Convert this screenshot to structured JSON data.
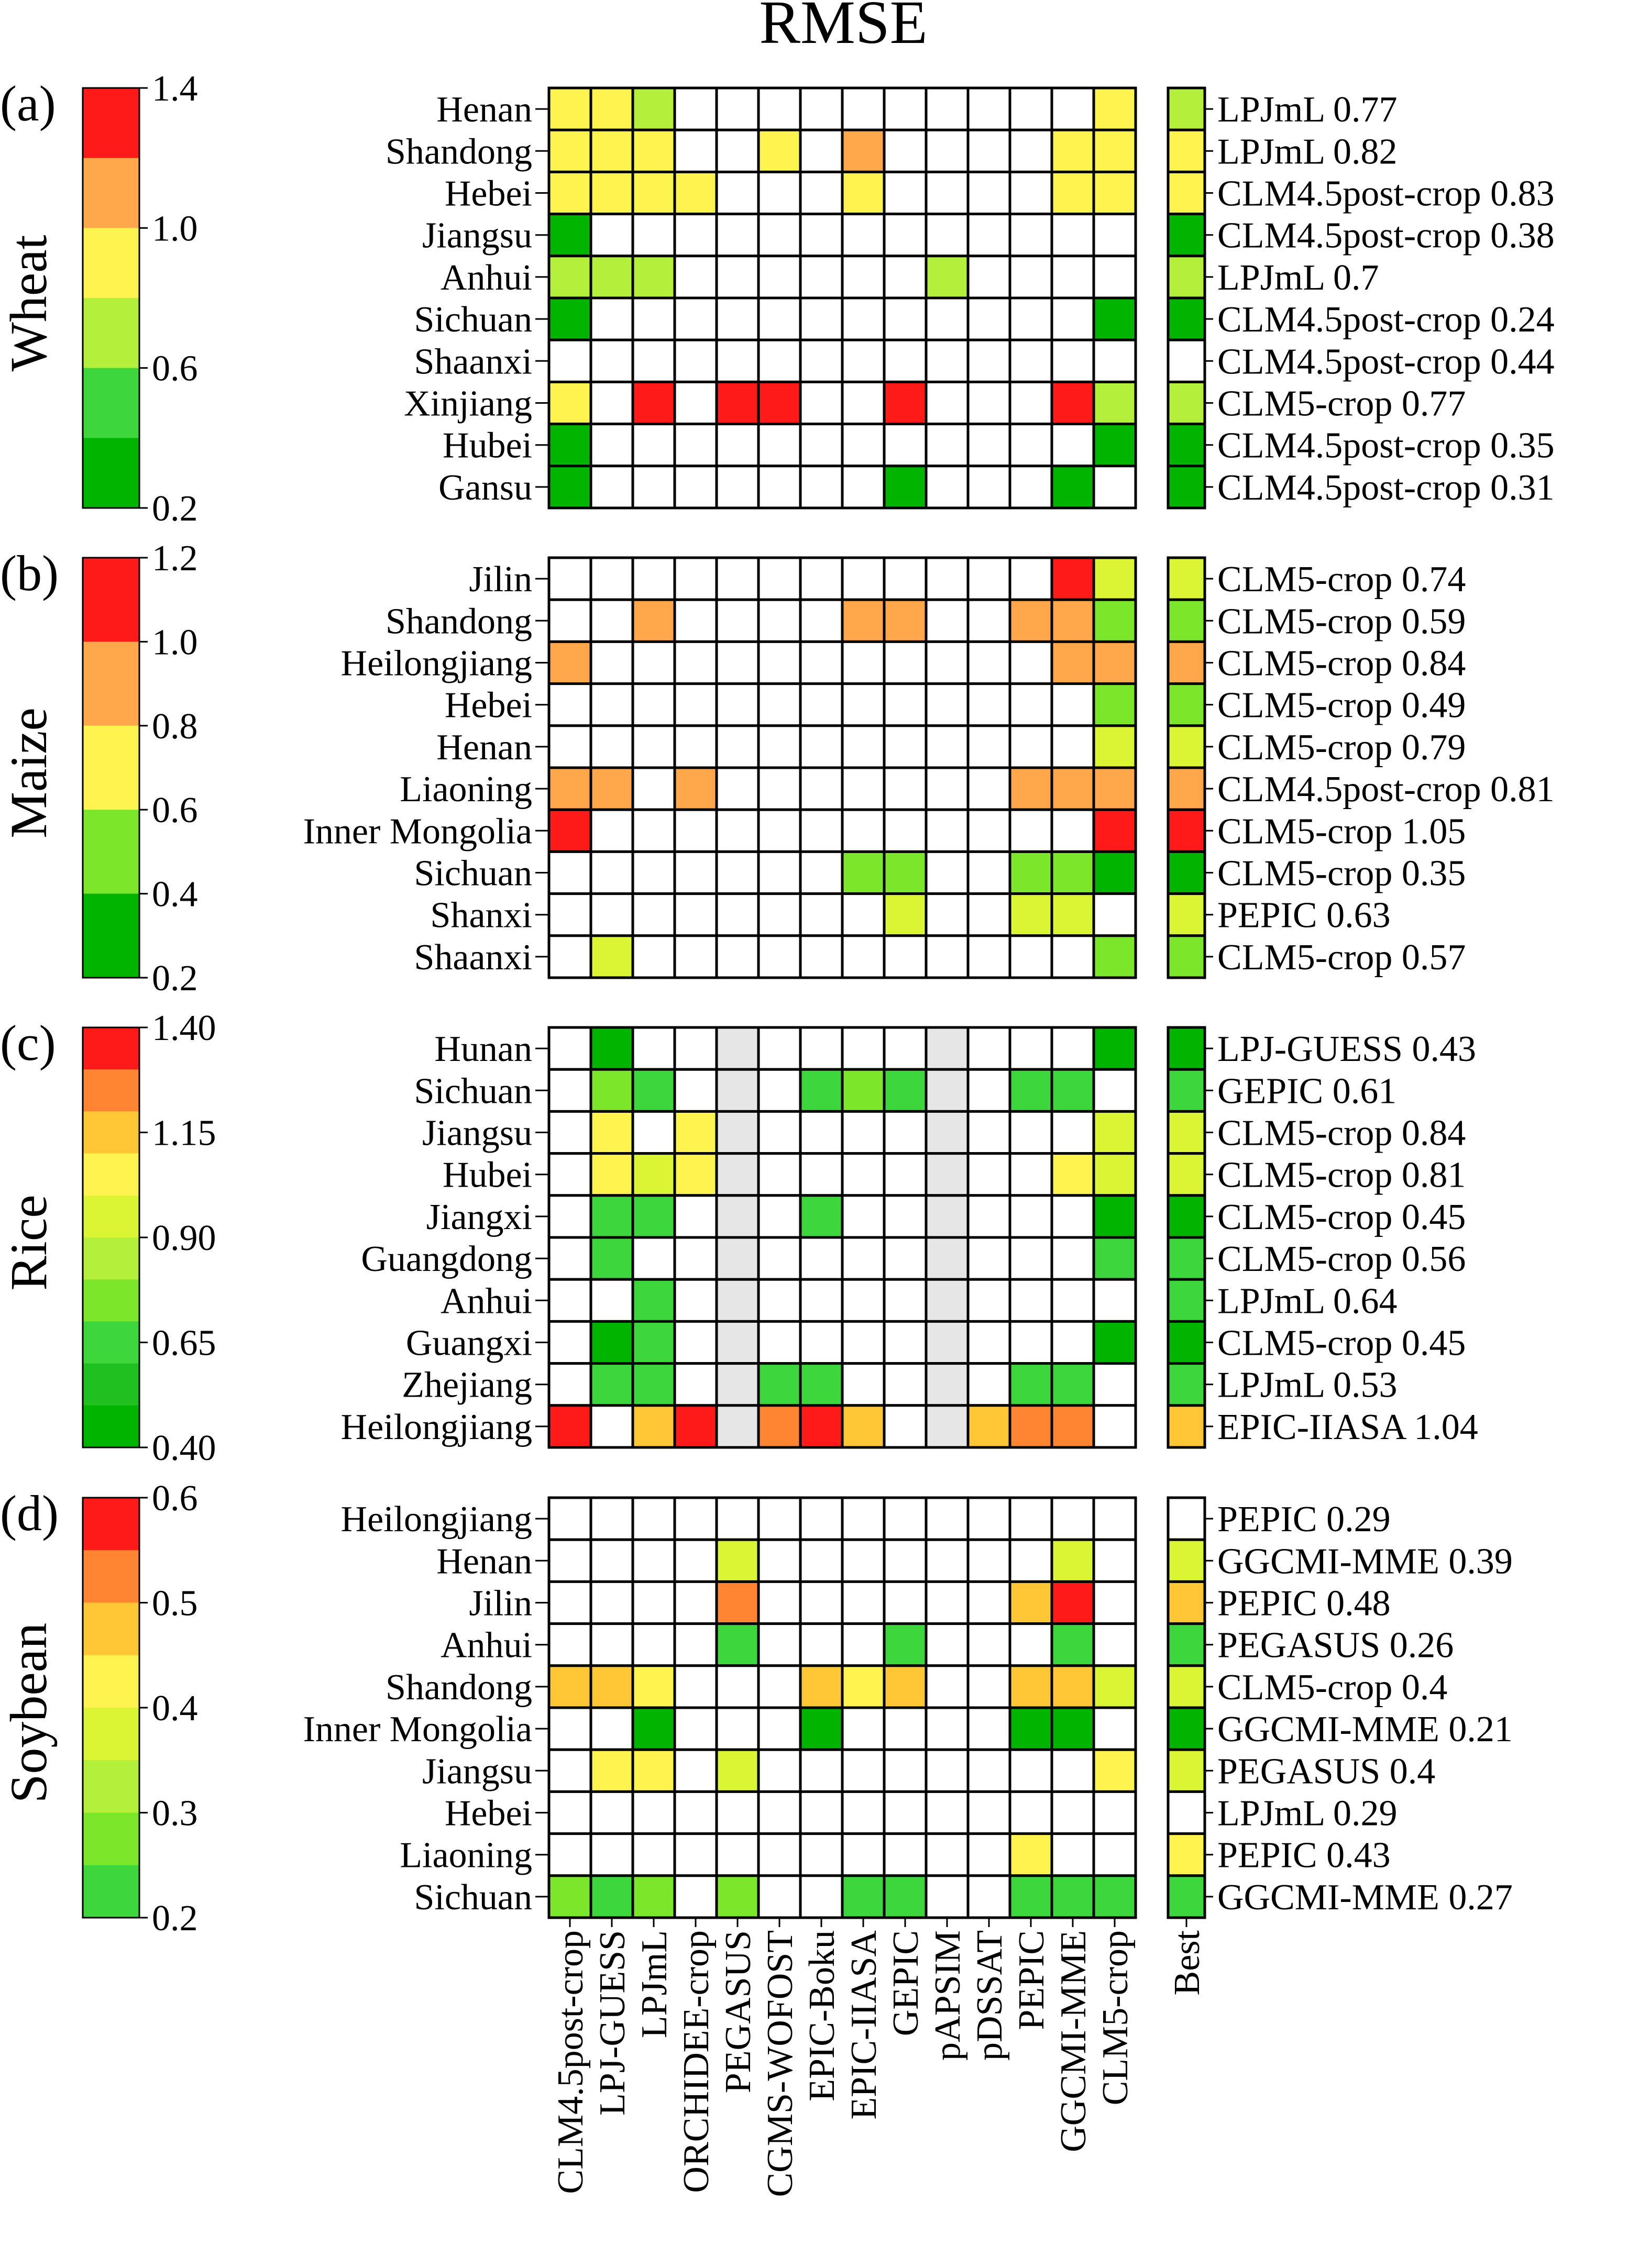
{
  "title": "RMSE",
  "models": [
    "CLM4.5post-crop",
    "LPJ-GUESS",
    "LPJmL",
    "ORCHIDEE-crop",
    "PEGASUS",
    "CGMS-WOFOST",
    "EPIC-Boku",
    "EPIC-IIASA",
    "GEPIC",
    "pAPSIM",
    "pDSSAT",
    "PEPIC",
    "GGCMI-MME",
    "CLM5-crop"
  ],
  "best_label": "Best",
  "colors": {
    "g0": "#00b400",
    "g1": "#1fc01f",
    "g2": "#3dd63d",
    "g3": "#7ce62b",
    "g4": "#b4ef3c",
    "y0": "#dbf535",
    "y1": "#fff44f",
    "y2": "#ffc735",
    "o0": "#ffa74a",
    "o1": "#ff8533",
    "r0": "#ff1a1a",
    "white": "#ffffff",
    "gray": "#e6e6e6"
  },
  "chart_data": [
    {
      "type": "heatmap",
      "panel": "(a)",
      "crop": "Wheat",
      "colorbar": {
        "ticks": [
          "1.4",
          "1.0",
          "0.6",
          "0.2"
        ],
        "range": [
          0.2,
          1.4
        ],
        "colors": [
          "r0",
          "o0",
          "y1",
          "g4",
          "g2",
          "g0"
        ]
      },
      "rows": [
        {
          "region": "Henan",
          "cells": [
            "y1",
            "y1",
            "g4",
            "-",
            "-",
            "-",
            "-",
            "-",
            "-",
            "-",
            "-",
            "-",
            "-",
            "y1"
          ],
          "best_color": "g4",
          "best": "LPJmL 0.77"
        },
        {
          "region": "Shandong",
          "cells": [
            "y1",
            "y1",
            "y1",
            "-",
            "-",
            "y1",
            "-",
            "o0",
            "-",
            "-",
            "-",
            "-",
            "y1",
            "y1"
          ],
          "best_color": "y1",
          "best": "LPJmL 0.82"
        },
        {
          "region": "Hebei",
          "cells": [
            "y1",
            "y1",
            "y1",
            "y1",
            "-",
            "-",
            "-",
            "y1",
            "-",
            "-",
            "-",
            "-",
            "y1",
            "y1"
          ],
          "best_color": "y1",
          "best": "CLM4.5post-crop 0.83"
        },
        {
          "region": "Jiangsu",
          "cells": [
            "g0",
            "-",
            "-",
            "-",
            "-",
            "-",
            "-",
            "-",
            "-",
            "-",
            "-",
            "-",
            "-",
            "-"
          ],
          "best_color": "g0",
          "best": "CLM4.5post-crop 0.38"
        },
        {
          "region": "Anhui",
          "cells": [
            "g4",
            "g4",
            "g4",
            "-",
            "-",
            "-",
            "-",
            "-",
            "-",
            "g4",
            "-",
            "-",
            "-",
            "-"
          ],
          "best_color": "g4",
          "best": "LPJmL 0.7"
        },
        {
          "region": "Sichuan",
          "cells": [
            "g0",
            "-",
            "-",
            "-",
            "-",
            "-",
            "-",
            "-",
            "-",
            "-",
            "-",
            "-",
            "-",
            "g0"
          ],
          "best_color": "g0",
          "best": "CLM4.5post-crop 0.24"
        },
        {
          "region": "Shaanxi",
          "cells": [
            "-",
            "-",
            "-",
            "-",
            "-",
            "-",
            "-",
            "-",
            "-",
            "-",
            "-",
            "-",
            "-",
            "-"
          ],
          "best_color": "white",
          "best": "CLM4.5post-crop 0.44"
        },
        {
          "region": "Xinjiang",
          "cells": [
            "y1",
            "-",
            "r0",
            "-",
            "r0",
            "r0",
            "-",
            "-",
            "r0",
            "-",
            "-",
            "-",
            "r0",
            "g4"
          ],
          "best_color": "g4",
          "best": "CLM5-crop 0.77"
        },
        {
          "region": "Hubei",
          "cells": [
            "g0",
            "-",
            "-",
            "-",
            "-",
            "-",
            "-",
            "-",
            "-",
            "-",
            "-",
            "-",
            "-",
            "g0"
          ],
          "best_color": "g0",
          "best": "CLM4.5post-crop 0.35"
        },
        {
          "region": "Gansu",
          "cells": [
            "g0",
            "-",
            "-",
            "-",
            "-",
            "-",
            "-",
            "-",
            "g0",
            "-",
            "-",
            "-",
            "g0",
            "-"
          ],
          "best_color": "g0",
          "best": "CLM4.5post-crop 0.31"
        }
      ]
    },
    {
      "type": "heatmap",
      "panel": "(b)",
      "crop": "Maize",
      "colorbar": {
        "ticks": [
          "1.2",
          "1.0",
          "0.8",
          "0.6",
          "0.4",
          "0.2"
        ],
        "range": [
          0.2,
          1.2
        ],
        "colors": [
          "r0",
          "o0",
          "y1",
          "g3",
          "g0"
        ]
      },
      "rows": [
        {
          "region": "Jilin",
          "cells": [
            "-",
            "-",
            "-",
            "-",
            "-",
            "-",
            "-",
            "-",
            "-",
            "-",
            "-",
            "-",
            "r0",
            "y0"
          ],
          "best_color": "y0",
          "best": "CLM5-crop 0.74"
        },
        {
          "region": "Shandong",
          "cells": [
            "-",
            "-",
            "o0",
            "-",
            "-",
            "-",
            "-",
            "o0",
            "o0",
            "-",
            "-",
            "o0",
            "o0",
            "g3"
          ],
          "best_color": "g3",
          "best": "CLM5-crop 0.59"
        },
        {
          "region": "Heilongjiang",
          "cells": [
            "o0",
            "-",
            "-",
            "-",
            "-",
            "-",
            "-",
            "-",
            "-",
            "-",
            "-",
            "-",
            "o0",
            "o0"
          ],
          "best_color": "o0",
          "best": "CLM5-crop 0.84"
        },
        {
          "region": "Hebei",
          "cells": [
            "-",
            "-",
            "-",
            "-",
            "-",
            "-",
            "-",
            "-",
            "-",
            "-",
            "-",
            "-",
            "-",
            "g3"
          ],
          "best_color": "g3",
          "best": "CLM5-crop 0.49"
        },
        {
          "region": "Henan",
          "cells": [
            "-",
            "-",
            "-",
            "-",
            "-",
            "-",
            "-",
            "-",
            "-",
            "-",
            "-",
            "-",
            "-",
            "y0"
          ],
          "best_color": "y0",
          "best": "CLM5-crop 0.79"
        },
        {
          "region": "Liaoning",
          "cells": [
            "o0",
            "o0",
            "-",
            "o0",
            "-",
            "-",
            "-",
            "-",
            "-",
            "-",
            "-",
            "o0",
            "o0",
            "o0"
          ],
          "best_color": "o0",
          "best": "CLM4.5post-crop 0.81"
        },
        {
          "region": "Inner Mongolia",
          "cells": [
            "r0",
            "-",
            "-",
            "-",
            "-",
            "-",
            "-",
            "-",
            "-",
            "-",
            "-",
            "-",
            "-",
            "r0"
          ],
          "best_color": "r0",
          "best": "CLM5-crop 1.05"
        },
        {
          "region": "Sichuan",
          "cells": [
            "-",
            "-",
            "-",
            "-",
            "-",
            "-",
            "-",
            "g3",
            "g3",
            "-",
            "-",
            "g3",
            "g3",
            "g0"
          ],
          "best_color": "g0",
          "best": "CLM5-crop 0.35"
        },
        {
          "region": "Shanxi",
          "cells": [
            "-",
            "-",
            "-",
            "-",
            "-",
            "-",
            "-",
            "-",
            "y0",
            "-",
            "-",
            "y0",
            "y0",
            "-"
          ],
          "best_color": "y0",
          "best": "PEPIC 0.63"
        },
        {
          "region": "Shaanxi",
          "cells": [
            "-",
            "y0",
            "-",
            "-",
            "-",
            "-",
            "-",
            "-",
            "-",
            "-",
            "-",
            "-",
            "-",
            "g3"
          ],
          "best_color": "g3",
          "best": "CLM5-crop 0.57"
        }
      ]
    },
    {
      "type": "heatmap",
      "panel": "(c)",
      "crop": "Rice",
      "colorbar": {
        "ticks": [
          "1.40",
          "1.15",
          "0.90",
          "0.65",
          "0.40"
        ],
        "range": [
          0.4,
          1.4
        ],
        "colors": [
          "r0",
          "o1",
          "y2",
          "y1",
          "y0",
          "g4",
          "g3",
          "g2",
          "g1",
          "g0"
        ]
      },
      "rows": [
        {
          "region": "Hunan",
          "cells": [
            "-",
            "g0",
            "-",
            "-",
            "x",
            "-",
            "-",
            "-",
            "-",
            "x",
            "-",
            "-",
            "-",
            "g0"
          ],
          "best_color": "g0",
          "best": "LPJ-GUESS 0.43"
        },
        {
          "region": "Sichuan",
          "cells": [
            "-",
            "g3",
            "g2",
            "-",
            "x",
            "-",
            "g2",
            "g3",
            "g2",
            "x",
            "-",
            "g2",
            "g2",
            "-"
          ],
          "best_color": "g2",
          "best": "GEPIC 0.61"
        },
        {
          "region": "Jiangsu",
          "cells": [
            "-",
            "y1",
            "-",
            "y1",
            "x",
            "-",
            "-",
            "-",
            "-",
            "x",
            "-",
            "-",
            "-",
            "y0"
          ],
          "best_color": "y0",
          "best": "CLM5-crop 0.84"
        },
        {
          "region": "Hubei",
          "cells": [
            "-",
            "y1",
            "y0",
            "y1",
            "x",
            "-",
            "-",
            "-",
            "-",
            "x",
            "-",
            "-",
            "y1",
            "y0"
          ],
          "best_color": "y0",
          "best": "CLM5-crop 0.81"
        },
        {
          "region": "Jiangxi",
          "cells": [
            "-",
            "g2",
            "g2",
            "-",
            "x",
            "-",
            "g2",
            "-",
            "-",
            "x",
            "-",
            "-",
            "-",
            "g0"
          ],
          "best_color": "g0",
          "best": "CLM5-crop 0.45"
        },
        {
          "region": "Guangdong",
          "cells": [
            "-",
            "g2",
            "-",
            "-",
            "x",
            "-",
            "-",
            "-",
            "-",
            "x",
            "-",
            "-",
            "-",
            "g2"
          ],
          "best_color": "g2",
          "best": "CLM5-crop 0.56"
        },
        {
          "region": "Anhui",
          "cells": [
            "-",
            "-",
            "g2",
            "-",
            "x",
            "-",
            "-",
            "-",
            "-",
            "x",
            "-",
            "-",
            "-",
            "-"
          ],
          "best_color": "g2",
          "best": "LPJmL 0.64"
        },
        {
          "region": "Guangxi",
          "cells": [
            "-",
            "g0",
            "g2",
            "-",
            "x",
            "-",
            "-",
            "-",
            "-",
            "x",
            "-",
            "-",
            "-",
            "g0"
          ],
          "best_color": "g0",
          "best": "CLM5-crop 0.45"
        },
        {
          "region": "Zhejiang",
          "cells": [
            "-",
            "g2",
            "g2",
            "-",
            "x",
            "g2",
            "g2",
            "-",
            "-",
            "x",
            "-",
            "g2",
            "g2",
            "-"
          ],
          "best_color": "g2",
          "best": "LPJmL 0.53"
        },
        {
          "region": "Heilongjiang",
          "cells": [
            "r0",
            "-",
            "y2",
            "r0",
            "x",
            "o1",
            "r0",
            "y2",
            "-",
            "x",
            "y2",
            "o1",
            "o1",
            "-"
          ],
          "best_color": "y2",
          "best": "EPIC-IIASA 1.04"
        }
      ]
    },
    {
      "type": "heatmap",
      "panel": "(d)",
      "crop": "Soybean",
      "colorbar": {
        "ticks": [
          "0.6",
          "0.5",
          "0.4",
          "0.3",
          "0.2"
        ],
        "range": [
          0.2,
          0.6
        ],
        "colors": [
          "r0",
          "o1",
          "y2",
          "y1",
          "y0",
          "g4",
          "g3",
          "g2"
        ]
      },
      "rows": [
        {
          "region": "Heilongjiang",
          "cells": [
            "-",
            "-",
            "-",
            "-",
            "-",
            "-",
            "-",
            "-",
            "-",
            "-",
            "-",
            "-",
            "-",
            "-"
          ],
          "best_color": "white",
          "best": "PEPIC 0.29"
        },
        {
          "region": "Henan",
          "cells": [
            "-",
            "-",
            "-",
            "-",
            "y0",
            "-",
            "-",
            "-",
            "-",
            "-",
            "-",
            "-",
            "y0",
            "-"
          ],
          "best_color": "y0",
          "best": "GGCMI-MME 0.39"
        },
        {
          "region": "Jilin",
          "cells": [
            "-",
            "-",
            "-",
            "-",
            "o1",
            "-",
            "-",
            "-",
            "-",
            "-",
            "-",
            "y2",
            "r0",
            "-"
          ],
          "best_color": "y2",
          "best": "PEPIC 0.48"
        },
        {
          "region": "Anhui",
          "cells": [
            "-",
            "-",
            "-",
            "-",
            "g2",
            "-",
            "-",
            "-",
            "g2",
            "-",
            "-",
            "-",
            "g2",
            "-"
          ],
          "best_color": "g2",
          "best": "PEGASUS 0.26"
        },
        {
          "region": "Shandong",
          "cells": [
            "y2",
            "y2",
            "y1",
            "-",
            "-",
            "-",
            "y2",
            "y1",
            "y2",
            "-",
            "-",
            "y2",
            "y2",
            "y0"
          ],
          "best_color": "y0",
          "best": "CLM5-crop 0.4"
        },
        {
          "region": "Inner Mongolia",
          "cells": [
            "-",
            "-",
            "g0",
            "-",
            "-",
            "-",
            "g0",
            "-",
            "-",
            "-",
            "-",
            "g0",
            "g0",
            "-"
          ],
          "best_color": "g0",
          "best": "GGCMI-MME 0.21"
        },
        {
          "region": "Jiangsu",
          "cells": [
            "-",
            "y1",
            "y1",
            "-",
            "y0",
            "-",
            "-",
            "-",
            "-",
            "-",
            "-",
            "-",
            "-",
            "y1"
          ],
          "best_color": "y0",
          "best": "PEGASUS 0.4"
        },
        {
          "region": "Hebei",
          "cells": [
            "-",
            "-",
            "-",
            "-",
            "-",
            "-",
            "-",
            "-",
            "-",
            "-",
            "-",
            "-",
            "-",
            "-"
          ],
          "best_color": "white",
          "best": "LPJmL 0.29"
        },
        {
          "region": "Liaoning",
          "cells": [
            "-",
            "-",
            "-",
            "-",
            "-",
            "-",
            "-",
            "-",
            "-",
            "-",
            "-",
            "y1",
            "-",
            "-"
          ],
          "best_color": "y1",
          "best": "PEPIC 0.43"
        },
        {
          "region": "Sichuan",
          "cells": [
            "g3",
            "g2",
            "g3",
            "-",
            "g3",
            "-",
            "-",
            "g2",
            "g2",
            "-",
            "-",
            "g2",
            "g2",
            "g2"
          ],
          "best_color": "g2",
          "best": "GGCMI-MME 0.27"
        }
      ]
    }
  ]
}
